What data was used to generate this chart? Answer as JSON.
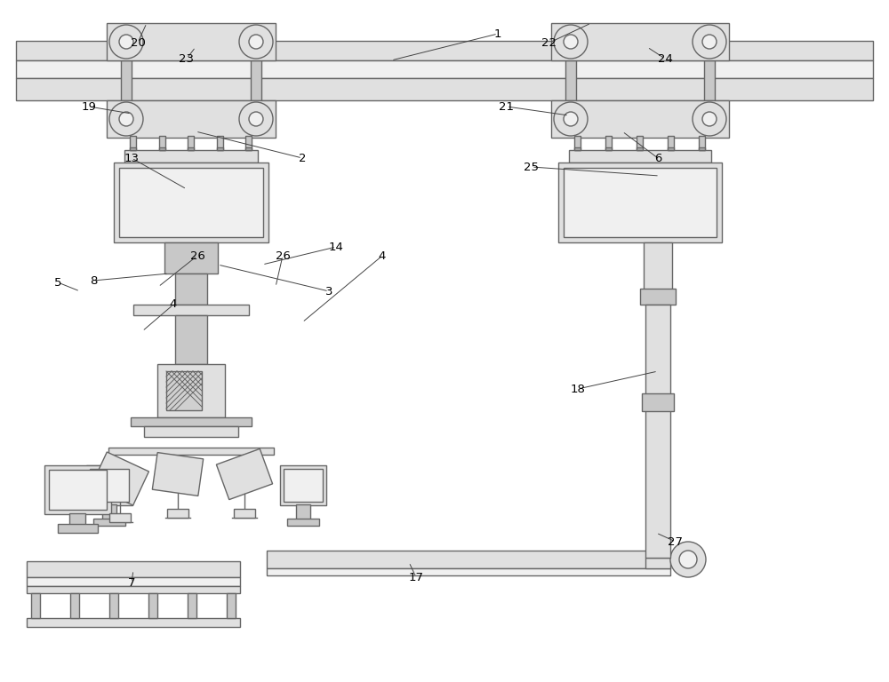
{
  "bg_color": "#ffffff",
  "lc": "#666666",
  "fl": "#e0e0e0",
  "fm": "#c8c8c8",
  "fw": "#f0f0f0",
  "fd": "#b0b0b0"
}
